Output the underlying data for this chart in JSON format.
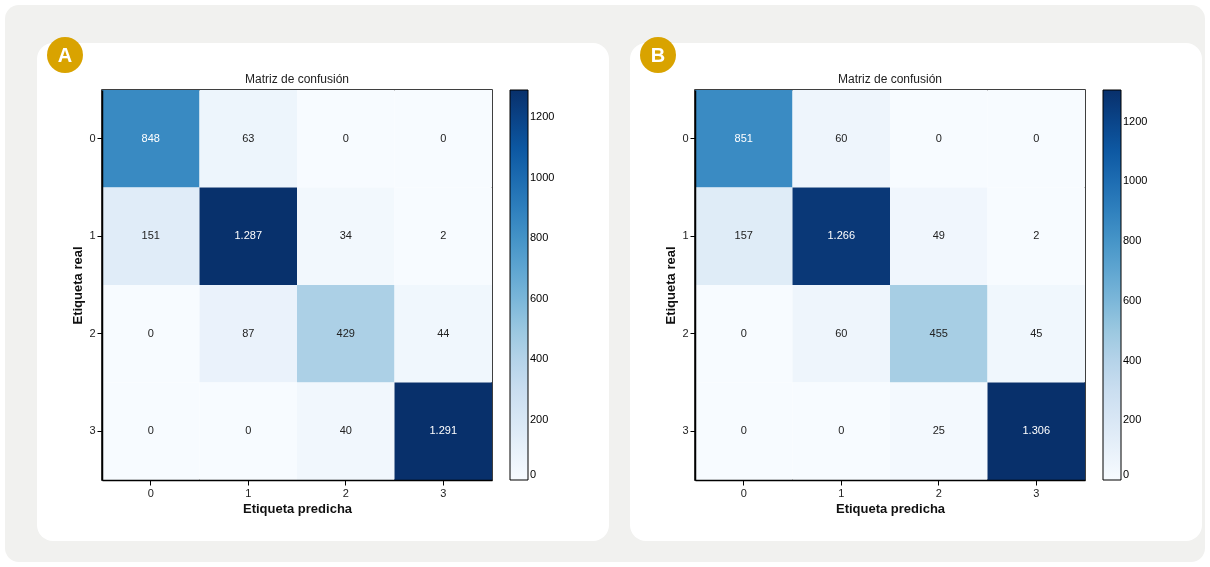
{
  "chart_data": [
    {
      "type": "heatmap",
      "title": "Matriz de confusión",
      "xlabel": "Etiqueta predicha",
      "ylabel": "Etiqueta real",
      "annotations": [
        "A"
      ],
      "categories": [
        "0",
        "1",
        "2",
        "3"
      ],
      "y_categories": [
        "0",
        "1",
        "2",
        "3"
      ],
      "cells": [
        [
          848,
          63,
          0,
          0
        ],
        [
          151,
          1287,
          34,
          2
        ],
        [
          0,
          87,
          429,
          44
        ],
        [
          0,
          0,
          40,
          1291
        ]
      ],
      "cell_labels": [
        [
          "848",
          "63",
          "0",
          "0"
        ],
        [
          "151",
          "1.287",
          "34",
          "2"
        ],
        [
          "0",
          "87",
          "429",
          "44"
        ],
        [
          "0",
          "0",
          "40",
          "1.291"
        ]
      ],
      "clim": [
        0,
        1291
      ],
      "cticks": [
        0,
        200,
        400,
        600,
        800,
        1000,
        1200
      ],
      "grid": false
    },
    {
      "type": "heatmap",
      "title": "Matriz de confusión",
      "xlabel": "Etiqueta predicha",
      "ylabel": "Etiqueta real",
      "annotations": [
        "B"
      ],
      "categories": [
        "0",
        "1",
        "2",
        "3"
      ],
      "y_categories": [
        "0",
        "1",
        "2",
        "3"
      ],
      "cells": [
        [
          851,
          60,
          0,
          0
        ],
        [
          157,
          1266,
          49,
          2
        ],
        [
          0,
          60,
          455,
          45
        ],
        [
          0,
          0,
          25,
          1306
        ]
      ],
      "cell_labels": [
        [
          "851",
          "60",
          "0",
          "0"
        ],
        [
          "157",
          "1.266",
          "49",
          "2"
        ],
        [
          "0",
          "60",
          "455",
          "45"
        ],
        [
          "0",
          "0",
          "25",
          "1.306"
        ]
      ],
      "clim": [
        0,
        1306
      ],
      "cticks": [
        0,
        200,
        400,
        600,
        800,
        1000,
        1200
      ],
      "grid": false
    }
  ]
}
